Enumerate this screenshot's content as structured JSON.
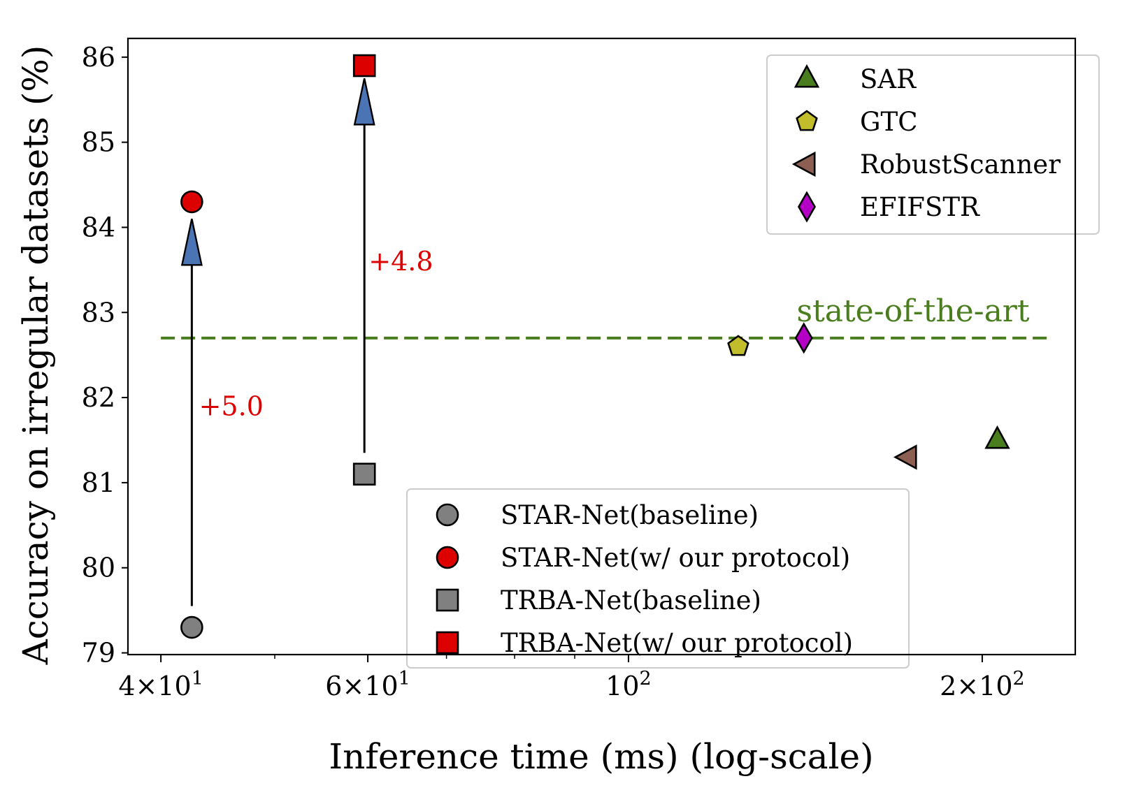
{
  "chart_data": {
    "type": "scatter",
    "xlabel": "Inference time (ms) (log-scale)",
    "ylabel": "Accuracy on irregular datasets (%)",
    "x_scale": "log",
    "xlim": [
      37.5,
      240
    ],
    "ylim": [
      78.98,
      86.22
    ],
    "x_ticks": [
      {
        "value": 40,
        "mantissa": "4",
        "exp": "1"
      },
      {
        "value": 60,
        "mantissa": "6",
        "exp": "1"
      },
      {
        "value": 100,
        "mantissa": "",
        "exp": "2"
      },
      {
        "value": 200,
        "mantissa": "2",
        "exp": "2"
      }
    ],
    "x_minor_ticks": [
      50,
      70,
      80,
      90,
      300
    ],
    "y_ticks": [
      79,
      80,
      81,
      82,
      83,
      84,
      85,
      86
    ],
    "y_tick_labels": [
      "79",
      "80",
      "81",
      "82",
      "83",
      "84",
      "85",
      "86"
    ],
    "series": [
      {
        "name": "STAR-Net(baseline)",
        "marker": "circle",
        "color": "#808080",
        "points": [
          {
            "x": 42.5,
            "y": 79.3
          }
        ]
      },
      {
        "name": "STAR-Net(w/ our protocol)",
        "marker": "circle",
        "color": "#dd0000",
        "points": [
          {
            "x": 42.5,
            "y": 84.3
          }
        ]
      },
      {
        "name": "TRBA-Net(baseline)",
        "marker": "square",
        "color": "#808080",
        "points": [
          {
            "x": 59.6,
            "y": 81.1
          }
        ]
      },
      {
        "name": "TRBA-Net(w/ our protocol)",
        "marker": "square",
        "color": "#dd0000",
        "points": [
          {
            "x": 59.6,
            "y": 85.9
          }
        ]
      },
      {
        "name": "SAR",
        "marker": "triangle-up",
        "color": "#4a7d1e",
        "points": [
          {
            "x": 206,
            "y": 81.5
          }
        ]
      },
      {
        "name": "GTC",
        "marker": "pentagon",
        "color": "#c2bd2b",
        "points": [
          {
            "x": 124,
            "y": 82.6
          }
        ]
      },
      {
        "name": "RobustScanner",
        "marker": "triangle-left",
        "color": "#8c5f52",
        "points": [
          {
            "x": 173,
            "y": 81.3
          }
        ]
      },
      {
        "name": "EFIFSTR",
        "marker": "diamond",
        "color": "#b300c4",
        "points": [
          {
            "x": 141,
            "y": 82.7
          }
        ]
      }
    ],
    "reference_line": {
      "y": 82.7,
      "x_from": 40,
      "x_to": 228,
      "color": "#4a7d1e",
      "style": "dashed",
      "label": "state-of-the-art"
    },
    "arrows": [
      {
        "x": 42.5,
        "y_from": 79.55,
        "y_to": 84.1,
        "label": "+5.0",
        "label_x": 43.1,
        "label_y": 81.9
      },
      {
        "x": 59.6,
        "y_from": 81.35,
        "y_to": 85.75,
        "label": "+4.8",
        "label_x": 60.1,
        "label_y": 83.6
      }
    ],
    "annotation_color": "#dd0000",
    "arrow_fill": "#4a74b4",
    "legends": [
      {
        "position": "lower-center",
        "items": [
          "STAR-Net(baseline)",
          "STAR-Net(w/ our protocol)",
          "TRBA-Net(baseline)",
          "TRBA-Net(w/ our protocol)"
        ]
      },
      {
        "position": "upper-right",
        "items": [
          "SAR",
          "GTC",
          "RobustScanner",
          "EFIFSTR"
        ]
      }
    ],
    "grid": false
  }
}
